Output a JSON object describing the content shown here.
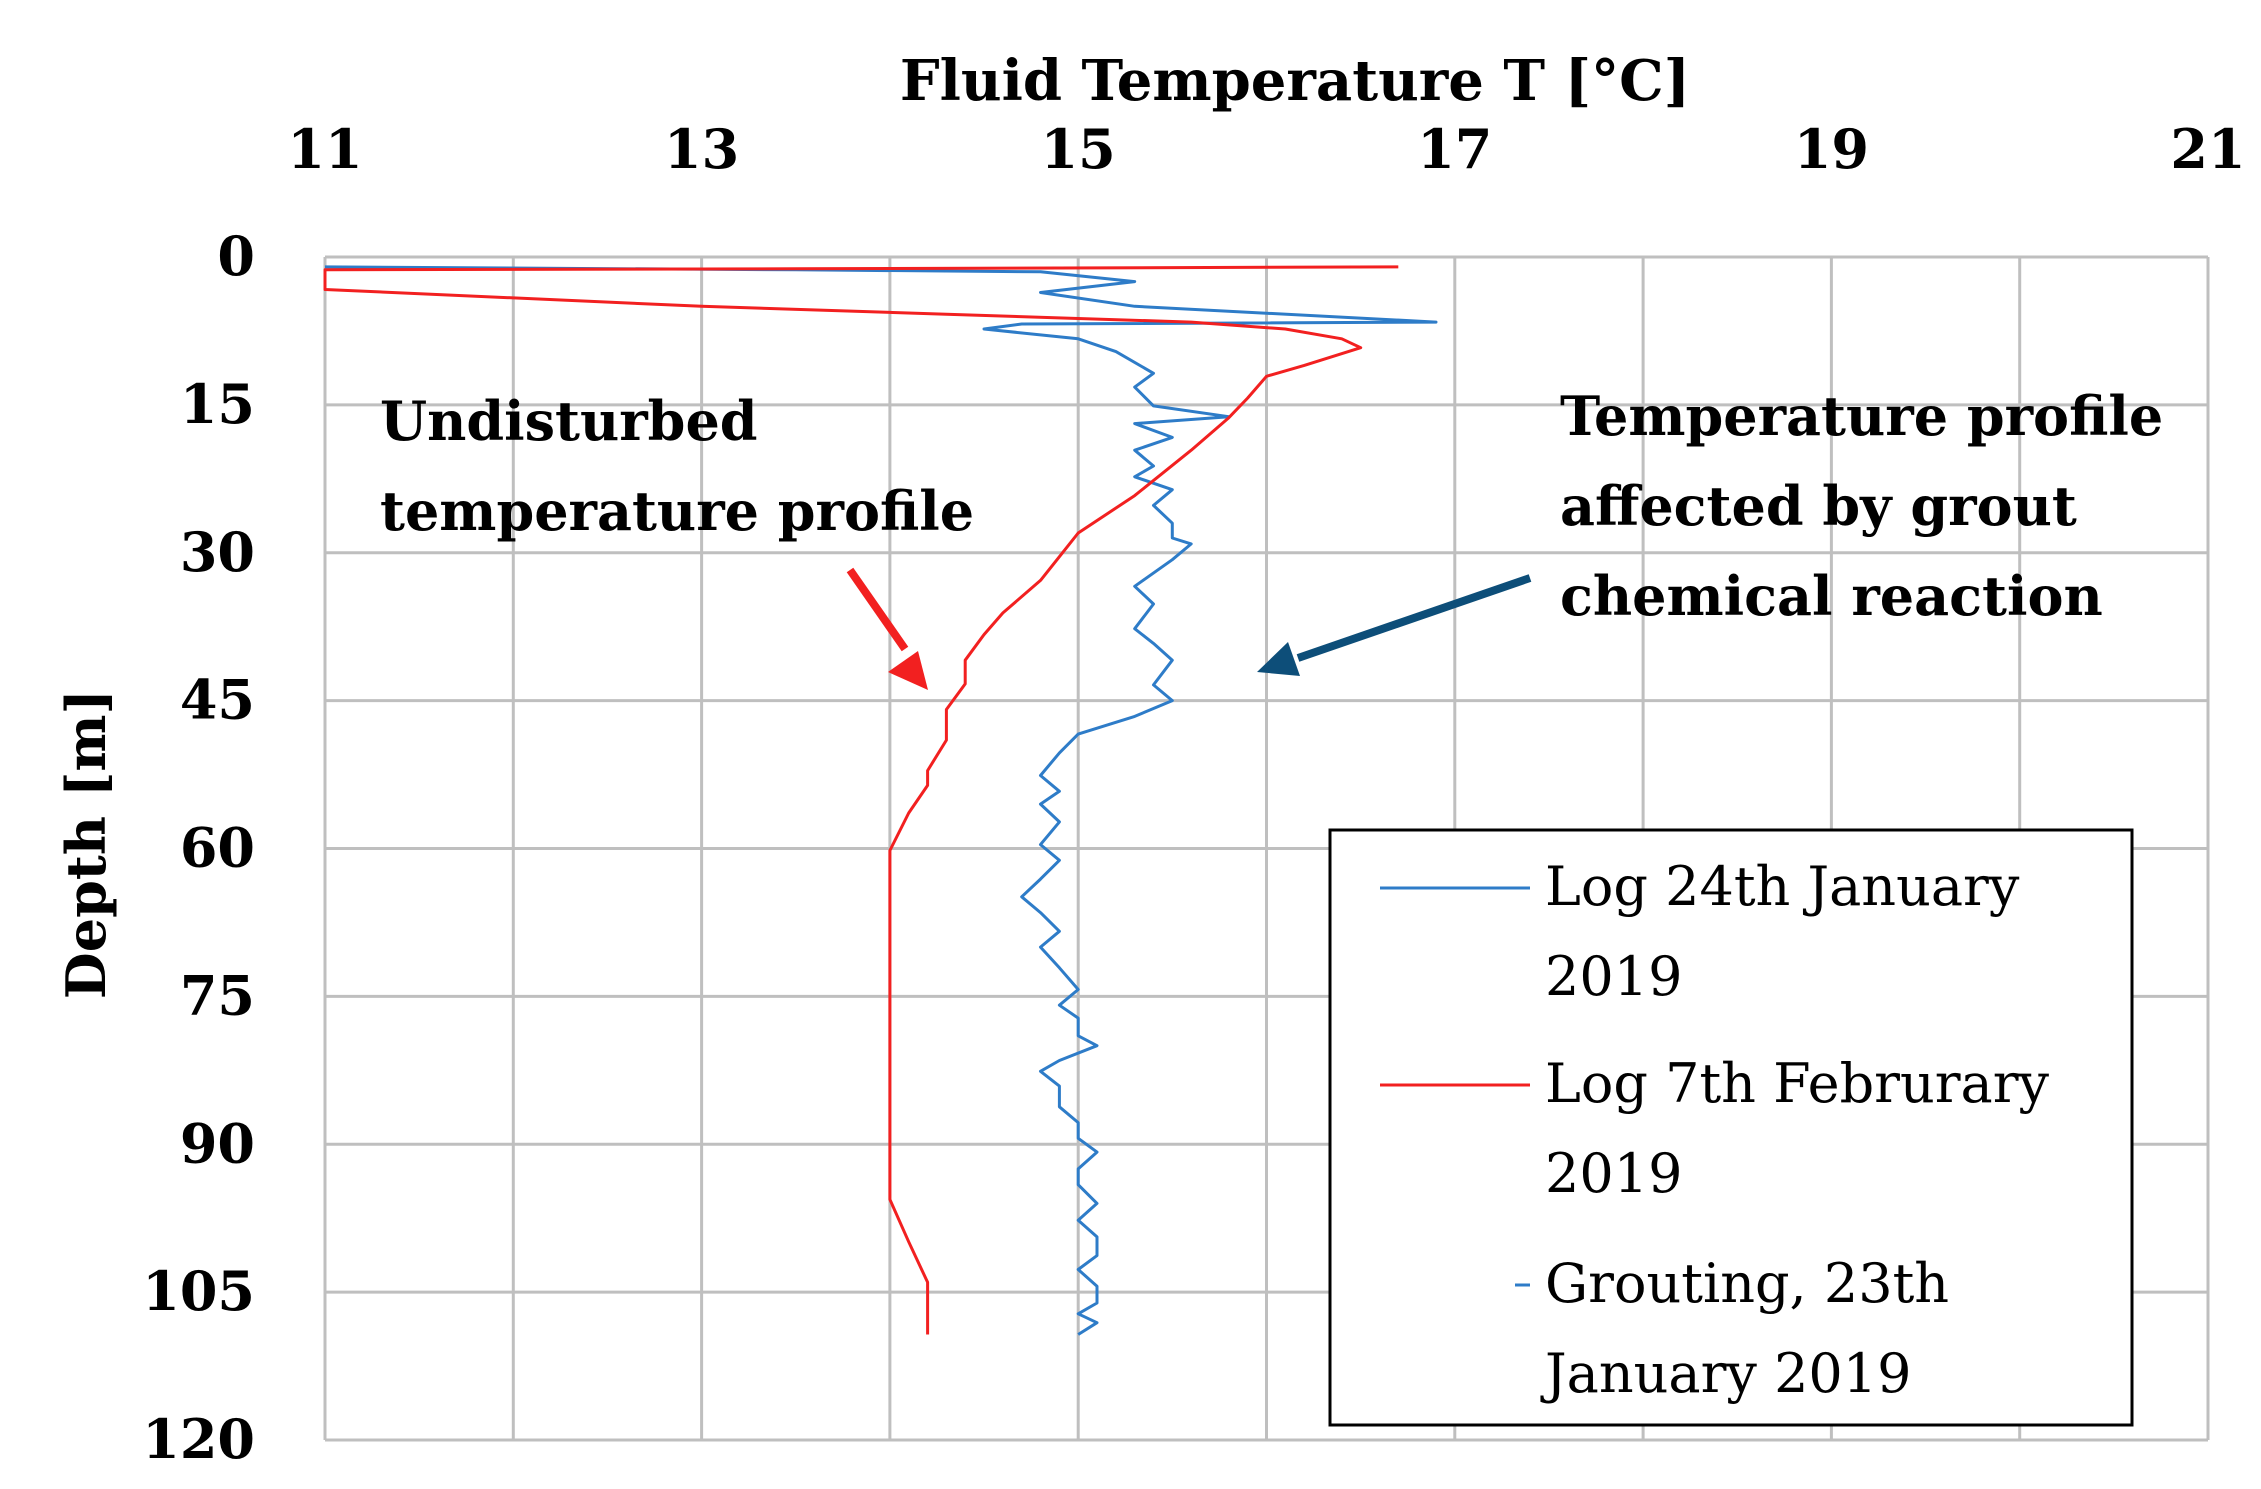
{
  "chart_data": {
    "type": "line",
    "title": "Fluid Temperature T [°C]",
    "xlabel": "Fluid Temperature T [°C]",
    "ylabel": "Depth [m]",
    "x_axis_position": "top",
    "y_axis_inverted": true,
    "xlim": [
      11,
      21
    ],
    "ylim": [
      0,
      120
    ],
    "xticks": [
      11,
      13,
      15,
      17,
      19,
      21
    ],
    "yticks": [
      0,
      15,
      30,
      45,
      60,
      75,
      90,
      105,
      120
    ],
    "x_grid_step": 1,
    "grid": true,
    "legend_position": "bottom-right",
    "series": [
      {
        "name": "Log 24th January 2019",
        "color": "#2E7CC8",
        "style": "solid",
        "points": [
          [
            11.0,
            1.0
          ],
          [
            13.5,
            1.3
          ],
          [
            14.8,
            1.5
          ],
          [
            15.3,
            2.5
          ],
          [
            14.8,
            3.6
          ],
          [
            15.3,
            5.0
          ],
          [
            16.9,
            6.6
          ],
          [
            14.7,
            6.8
          ],
          [
            14.5,
            7.3
          ],
          [
            15.0,
            8.3
          ],
          [
            15.2,
            9.6
          ],
          [
            15.4,
            11.8
          ],
          [
            15.3,
            13.2
          ],
          [
            15.4,
            15.1
          ],
          [
            15.8,
            16.2
          ],
          [
            15.3,
            16.9
          ],
          [
            15.5,
            18.3
          ],
          [
            15.3,
            19.6
          ],
          [
            15.4,
            21.2
          ],
          [
            15.3,
            22.3
          ],
          [
            15.5,
            23.6
          ],
          [
            15.4,
            25.2
          ],
          [
            15.5,
            27.0
          ],
          [
            15.5,
            28.5
          ],
          [
            15.6,
            29.1
          ],
          [
            15.5,
            30.7
          ],
          [
            15.3,
            33.4
          ],
          [
            15.4,
            35.2
          ],
          [
            15.3,
            37.7
          ],
          [
            15.4,
            39.2
          ],
          [
            15.5,
            40.9
          ],
          [
            15.4,
            43.4
          ],
          [
            15.5,
            45.0
          ],
          [
            15.3,
            46.6
          ],
          [
            15.0,
            48.4
          ],
          [
            14.9,
            50.3
          ],
          [
            14.8,
            52.6
          ],
          [
            14.9,
            54.2
          ],
          [
            14.8,
            55.5
          ],
          [
            14.9,
            57.3
          ],
          [
            14.8,
            59.6
          ],
          [
            14.9,
            61.2
          ],
          [
            14.8,
            63.1
          ],
          [
            14.7,
            64.9
          ],
          [
            14.8,
            66.5
          ],
          [
            14.9,
            68.4
          ],
          [
            14.8,
            70.0
          ],
          [
            14.9,
            72.1
          ],
          [
            15.0,
            74.3
          ],
          [
            14.9,
            75.9
          ],
          [
            15.0,
            77.2
          ],
          [
            15.0,
            79.0
          ],
          [
            15.1,
            80.0
          ],
          [
            14.9,
            81.5
          ],
          [
            14.8,
            82.6
          ],
          [
            14.9,
            84.1
          ],
          [
            14.9,
            86.2
          ],
          [
            15.0,
            87.8
          ],
          [
            15.0,
            89.4
          ],
          [
            15.1,
            90.8
          ],
          [
            15.0,
            92.5
          ],
          [
            15.0,
            94.1
          ],
          [
            15.1,
            96.0
          ],
          [
            15.0,
            97.7
          ],
          [
            15.1,
            99.4
          ],
          [
            15.1,
            101.3
          ],
          [
            15.0,
            102.7
          ],
          [
            15.1,
            104.4
          ],
          [
            15.1,
            106.1
          ],
          [
            15.0,
            107.2
          ],
          [
            15.1,
            108.1
          ],
          [
            15.0,
            109.3
          ]
        ]
      },
      {
        "name": "Log 7th Februrary 2019",
        "color": "#F22020",
        "style": "solid",
        "points": [
          [
            16.7,
            1.0
          ],
          [
            13.5,
            1.2
          ],
          [
            11.0,
            1.3
          ],
          [
            11.0,
            3.3
          ],
          [
            13.0,
            5.0
          ],
          [
            14.3,
            5.8
          ],
          [
            15.6,
            6.6
          ],
          [
            16.1,
            7.3
          ],
          [
            16.4,
            8.3
          ],
          [
            16.5,
            9.2
          ],
          [
            16.2,
            11.0
          ],
          [
            16.0,
            12.1
          ],
          [
            15.9,
            14.3
          ],
          [
            15.8,
            16.3
          ],
          [
            15.6,
            19.6
          ],
          [
            15.3,
            24.2
          ],
          [
            15.0,
            28.0
          ],
          [
            14.9,
            30.4
          ],
          [
            14.8,
            32.8
          ],
          [
            14.6,
            36.1
          ],
          [
            14.5,
            38.3
          ],
          [
            14.4,
            40.9
          ],
          [
            14.4,
            43.3
          ],
          [
            14.3,
            45.9
          ],
          [
            14.3,
            49.0
          ],
          [
            14.2,
            52.1
          ],
          [
            14.2,
            53.6
          ],
          [
            14.1,
            56.4
          ],
          [
            14.0,
            60.2
          ],
          [
            14.0,
            62.9
          ],
          [
            14.0,
            67.3
          ],
          [
            14.0,
            72.4
          ],
          [
            14.0,
            78.6
          ],
          [
            14.0,
            84.5
          ],
          [
            14.0,
            88.5
          ],
          [
            14.0,
            91.8
          ],
          [
            14.0,
            95.6
          ],
          [
            14.1,
            99.9
          ],
          [
            14.2,
            104.0
          ],
          [
            14.2,
            108.1
          ],
          [
            14.2,
            109.3
          ]
        ]
      },
      {
        "name": "Grouting, 23th January 2019",
        "color": "#2E7CC8",
        "style": "dashed",
        "points": []
      }
    ],
    "annotations": [
      {
        "lines": [
          "Undisturbed",
          "temperature profile"
        ],
        "arrow_color": "#F22020",
        "arrow_tip": [
          14.2,
          44.0
        ]
      },
      {
        "lines": [
          "Temperature profile",
          "affected by grout",
          "chemical reaction"
        ],
        "arrow_color": "#0D4E79",
        "arrow_tip": [
          16.0,
          43.0
        ]
      }
    ],
    "legend": [
      "Log 24th January 2019",
      "Log 7th Februrary 2019",
      "Grouting, 23th January 2019"
    ],
    "legend_lines": [
      [
        "Log 24th January",
        "2019"
      ],
      [
        "Log 7th Februrary",
        "2019"
      ],
      [
        "Grouting, 23th",
        "January 2019"
      ]
    ]
  },
  "colors": {
    "grid": "#BFBFBF",
    "axis": "#BFBFBF",
    "legend_border": "#000000"
  }
}
